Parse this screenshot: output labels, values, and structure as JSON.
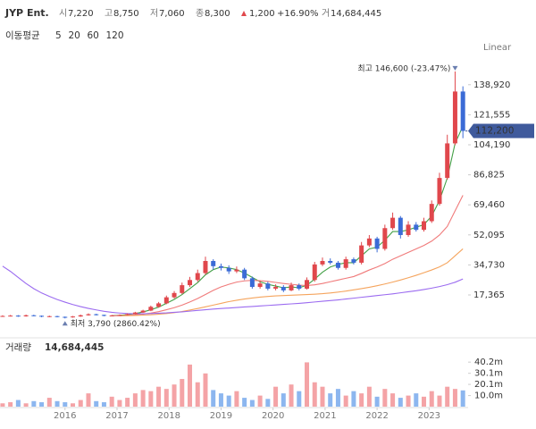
{
  "chart_data": {
    "type": "candlestick",
    "header": {
      "name": "JYP Ent.",
      "fields": [
        {
          "key": "시",
          "value": "7,220"
        },
        {
          "key": "고",
          "value": "8,750"
        },
        {
          "key": "저",
          "value": "7,060"
        },
        {
          "key": "종",
          "value": "8,300"
        }
      ],
      "change": "1,200",
      "change_pct": "+16.90%",
      "volume_key": "거",
      "volume": "14,684,445"
    },
    "ma_title": "이동평균",
    "scale_label": "Linear",
    "x": [
      2014.8,
      2014.95,
      2015.1,
      2015.25,
      2015.4,
      2015.55,
      2015.7,
      2015.85,
      2016,
      2016.15,
      2016.3,
      2016.45,
      2016.6,
      2016.75,
      2016.9,
      2017.05,
      2017.2,
      2017.35,
      2017.5,
      2017.65,
      2017.8,
      2017.95,
      2018.1,
      2018.25,
      2018.4,
      2018.55,
      2018.7,
      2018.85,
      2019,
      2019.15,
      2019.3,
      2019.45,
      2019.6,
      2019.75,
      2019.9,
      2020.05,
      2020.2,
      2020.35,
      2020.5,
      2020.65,
      2020.8,
      2020.95,
      2021.1,
      2021.25,
      2021.4,
      2021.55,
      2021.7,
      2021.85,
      2022,
      2022.15,
      2022.3,
      2022.45,
      2022.6,
      2022.75,
      2022.9,
      2023.05,
      2023.2,
      2023.35,
      2023.5,
      2023.65
    ],
    "open": [
      5000,
      5200,
      5400,
      5000,
      5600,
      5300,
      4800,
      5100,
      4700,
      4400,
      4900,
      5600,
      6200,
      5800,
      5300,
      5500,
      5800,
      6300,
      7200,
      8300,
      10500,
      12500,
      16000,
      18500,
      23000,
      26000,
      30000,
      37000,
      34000,
      33000,
      31000,
      32000,
      27000,
      22000,
      24000,
      21000,
      22000,
      20000,
      23000,
      21000,
      26000,
      35000,
      37000,
      36000,
      33000,
      38000,
      36000,
      46000,
      50000,
      44000,
      56000,
      62000,
      52000,
      58000,
      55000,
      60000,
      70000,
      85000,
      105000,
      135000
    ],
    "high": [
      5600,
      5800,
      5700,
      6000,
      5900,
      5500,
      5400,
      5300,
      4900,
      5200,
      6000,
      6700,
      6500,
      6000,
      5800,
      6100,
      6700,
      7600,
      8800,
      11200,
      13300,
      17000,
      19600,
      24500,
      27800,
      32000,
      39500,
      38000,
      35500,
      34500,
      33800,
      33000,
      28000,
      25500,
      25000,
      23500,
      23000,
      24500,
      24000,
      27500,
      36500,
      39000,
      38500,
      37000,
      39500,
      39000,
      48000,
      52000,
      51000,
      58000,
      65000,
      63000,
      60000,
      59500,
      62000,
      72000,
      88000,
      110000,
      146600,
      138000
    ],
    "low": [
      4700,
      4900,
      4700,
      4800,
      5000,
      4500,
      4500,
      4400,
      3790,
      4200,
      4700,
      5400,
      5500,
      5000,
      5100,
      5300,
      5600,
      6100,
      7000,
      8000,
      10000,
      12000,
      15300,
      17800,
      22000,
      25000,
      29000,
      32000,
      31500,
      29500,
      30000,
      26000,
      21000,
      21000,
      20000,
      20000,
      19000,
      19500,
      20000,
      20500,
      25000,
      34000,
      35000,
      32000,
      32000,
      35000,
      35000,
      45000,
      42000,
      43000,
      55000,
      50000,
      51000,
      54000,
      54000,
      59000,
      69000,
      84000,
      104000,
      108000
    ],
    "close": [
      5200,
      5400,
      5000,
      5600,
      5300,
      4800,
      5100,
      4700,
      4400,
      4900,
      5600,
      6200,
      5800,
      5300,
      5500,
      5800,
      6300,
      7200,
      8300,
      10500,
      12500,
      16000,
      18500,
      23000,
      26000,
      30000,
      37000,
      34000,
      33000,
      31000,
      32000,
      27000,
      22000,
      24000,
      21000,
      22000,
      20000,
      23000,
      21000,
      26000,
      35000,
      37000,
      36000,
      33000,
      38000,
      36000,
      46000,
      50000,
      44000,
      56000,
      62000,
      52000,
      58000,
      55000,
      60000,
      70000,
      85000,
      105000,
      135000,
      112200
    ],
    "up_color": "#e0474c",
    "down_color": "#3b6bd6",
    "last_price_label": "112,200",
    "annotations": {
      "high": "최고 146,600 (-23.47%)",
      "low": "최저 3,790 (2860.42%)"
    },
    "ma": [
      {
        "name": "5",
        "color": "#43a047",
        "values": [
          null,
          null,
          null,
          null,
          null,
          null,
          null,
          null,
          null,
          null,
          null,
          null,
          null,
          null,
          5400,
          5600,
          6000,
          6600,
          7500,
          8800,
          10300,
          12500,
          14800,
          17600,
          21000,
          24500,
          29000,
          32000,
          33500,
          33000,
          32000,
          30000,
          27500,
          25000,
          23500,
          22500,
          21500,
          22000,
          21500,
          23000,
          26500,
          30500,
          33500,
          35000,
          36000,
          36000,
          40000,
          44000,
          45000,
          49000,
          54000,
          54000,
          55000,
          56500,
          58000,
          63000,
          72000,
          85000,
          105000,
          115000
        ]
      },
      {
        "name": "20",
        "color": "#f07a7a",
        "values": [
          null,
          null,
          null,
          null,
          null,
          null,
          null,
          null,
          null,
          null,
          null,
          null,
          null,
          null,
          5300,
          5400,
          5600,
          5900,
          6300,
          6900,
          7700,
          8800,
          10000,
          11500,
          13300,
          15300,
          17600,
          20000,
          22000,
          23500,
          24800,
          25500,
          25800,
          25600,
          25200,
          24600,
          24000,
          23500,
          23000,
          22800,
          23200,
          24000,
          25000,
          26000,
          27000,
          28000,
          29800,
          31800,
          33500,
          35500,
          38000,
          40000,
          42000,
          44000,
          46000,
          48500,
          52000,
          57000,
          66000,
          75000
        ]
      },
      {
        "name": "60",
        "color": "#f5a45d",
        "values": [
          null,
          null,
          null,
          null,
          null,
          null,
          null,
          null,
          null,
          null,
          null,
          null,
          null,
          null,
          null,
          5300,
          5400,
          5500,
          5700,
          5900,
          6200,
          6600,
          7100,
          7800,
          8600,
          9500,
          10500,
          11500,
          12500,
          13500,
          14300,
          15000,
          15600,
          16100,
          16500,
          16800,
          17000,
          17200,
          17400,
          17600,
          17800,
          18100,
          18500,
          19000,
          19600,
          20300,
          21000,
          21800,
          22700,
          23700,
          24800,
          26000,
          27300,
          28700,
          30200,
          31800,
          33600,
          36000,
          40000,
          44000
        ]
      },
      {
        "name": "120",
        "color": "#9b6bf0",
        "values": [
          34000,
          31000,
          27500,
          24000,
          21000,
          18500,
          16500,
          14700,
          13200,
          11800,
          10600,
          9600,
          8700,
          7900,
          7300,
          6900,
          6600,
          6500,
          6500,
          6600,
          6800,
          7000,
          7300,
          7600,
          8000,
          8400,
          8800,
          9200,
          9500,
          9800,
          10100,
          10400,
          10700,
          11000,
          11300,
          11600,
          11900,
          12200,
          12500,
          12900,
          13300,
          13700,
          14100,
          14500,
          15000,
          15500,
          16000,
          16500,
          17000,
          17500,
          18000,
          18600,
          19200,
          19800,
          20500,
          21300,
          22200,
          23300,
          24700,
          26600
        ]
      }
    ],
    "xlim": [
      2014.75,
      2023.75
    ],
    "xticks": [
      2016,
      2017,
      2018,
      2019,
      2020,
      2021,
      2022,
      2023
    ],
    "ylim": [
      -4340,
      151730
    ],
    "yticks": [
      {
        "value": 17365,
        "label": "17,365"
      },
      {
        "value": 34730,
        "label": "34,730"
      },
      {
        "value": 52095,
        "label": "52,095"
      },
      {
        "value": 69460,
        "label": "69,460"
      },
      {
        "value": 86825,
        "label": "86,825"
      },
      {
        "value": 104190,
        "label": "104,190"
      },
      {
        "value": 121555,
        "label": "121,555"
      },
      {
        "value": 138920,
        "label": "138,920"
      }
    ],
    "volume_title": "거래량",
    "volume_total": "14,684,445",
    "volume": [
      3000000,
      4000000,
      6000000,
      3000000,
      5000000,
      4000000,
      8000000,
      5000000,
      4000000,
      3000000,
      6000000,
      12000000,
      5000000,
      4000000,
      9000000,
      6000000,
      8000000,
      12000000,
      15000000,
      14000000,
      18000000,
      16000000,
      20000000,
      25000000,
      38000000,
      22000000,
      30000000,
      15000000,
      12000000,
      10000000,
      14000000,
      8000000,
      6000000,
      10000000,
      7000000,
      18000000,
      12000000,
      20000000,
      14000000,
      40000000,
      22000000,
      18000000,
      12000000,
      16000000,
      10000000,
      14000000,
      12000000,
      18000000,
      9000000,
      16000000,
      12000000,
      8000000,
      10000000,
      12000000,
      9000000,
      14000000,
      10000000,
      18000000,
      16000000,
      14684445
    ],
    "volume_up_color": "#f4a3a6",
    "volume_down_color": "#8cb6ef",
    "vlim": [
      0,
      47600000
    ],
    "vticks": [
      {
        "value": 10000000,
        "label": "10.0m"
      },
      {
        "value": 20100000,
        "label": "20.1m"
      },
      {
        "value": 30100000,
        "label": "30.1m"
      },
      {
        "value": 40200000,
        "label": "40.2m"
      }
    ]
  }
}
